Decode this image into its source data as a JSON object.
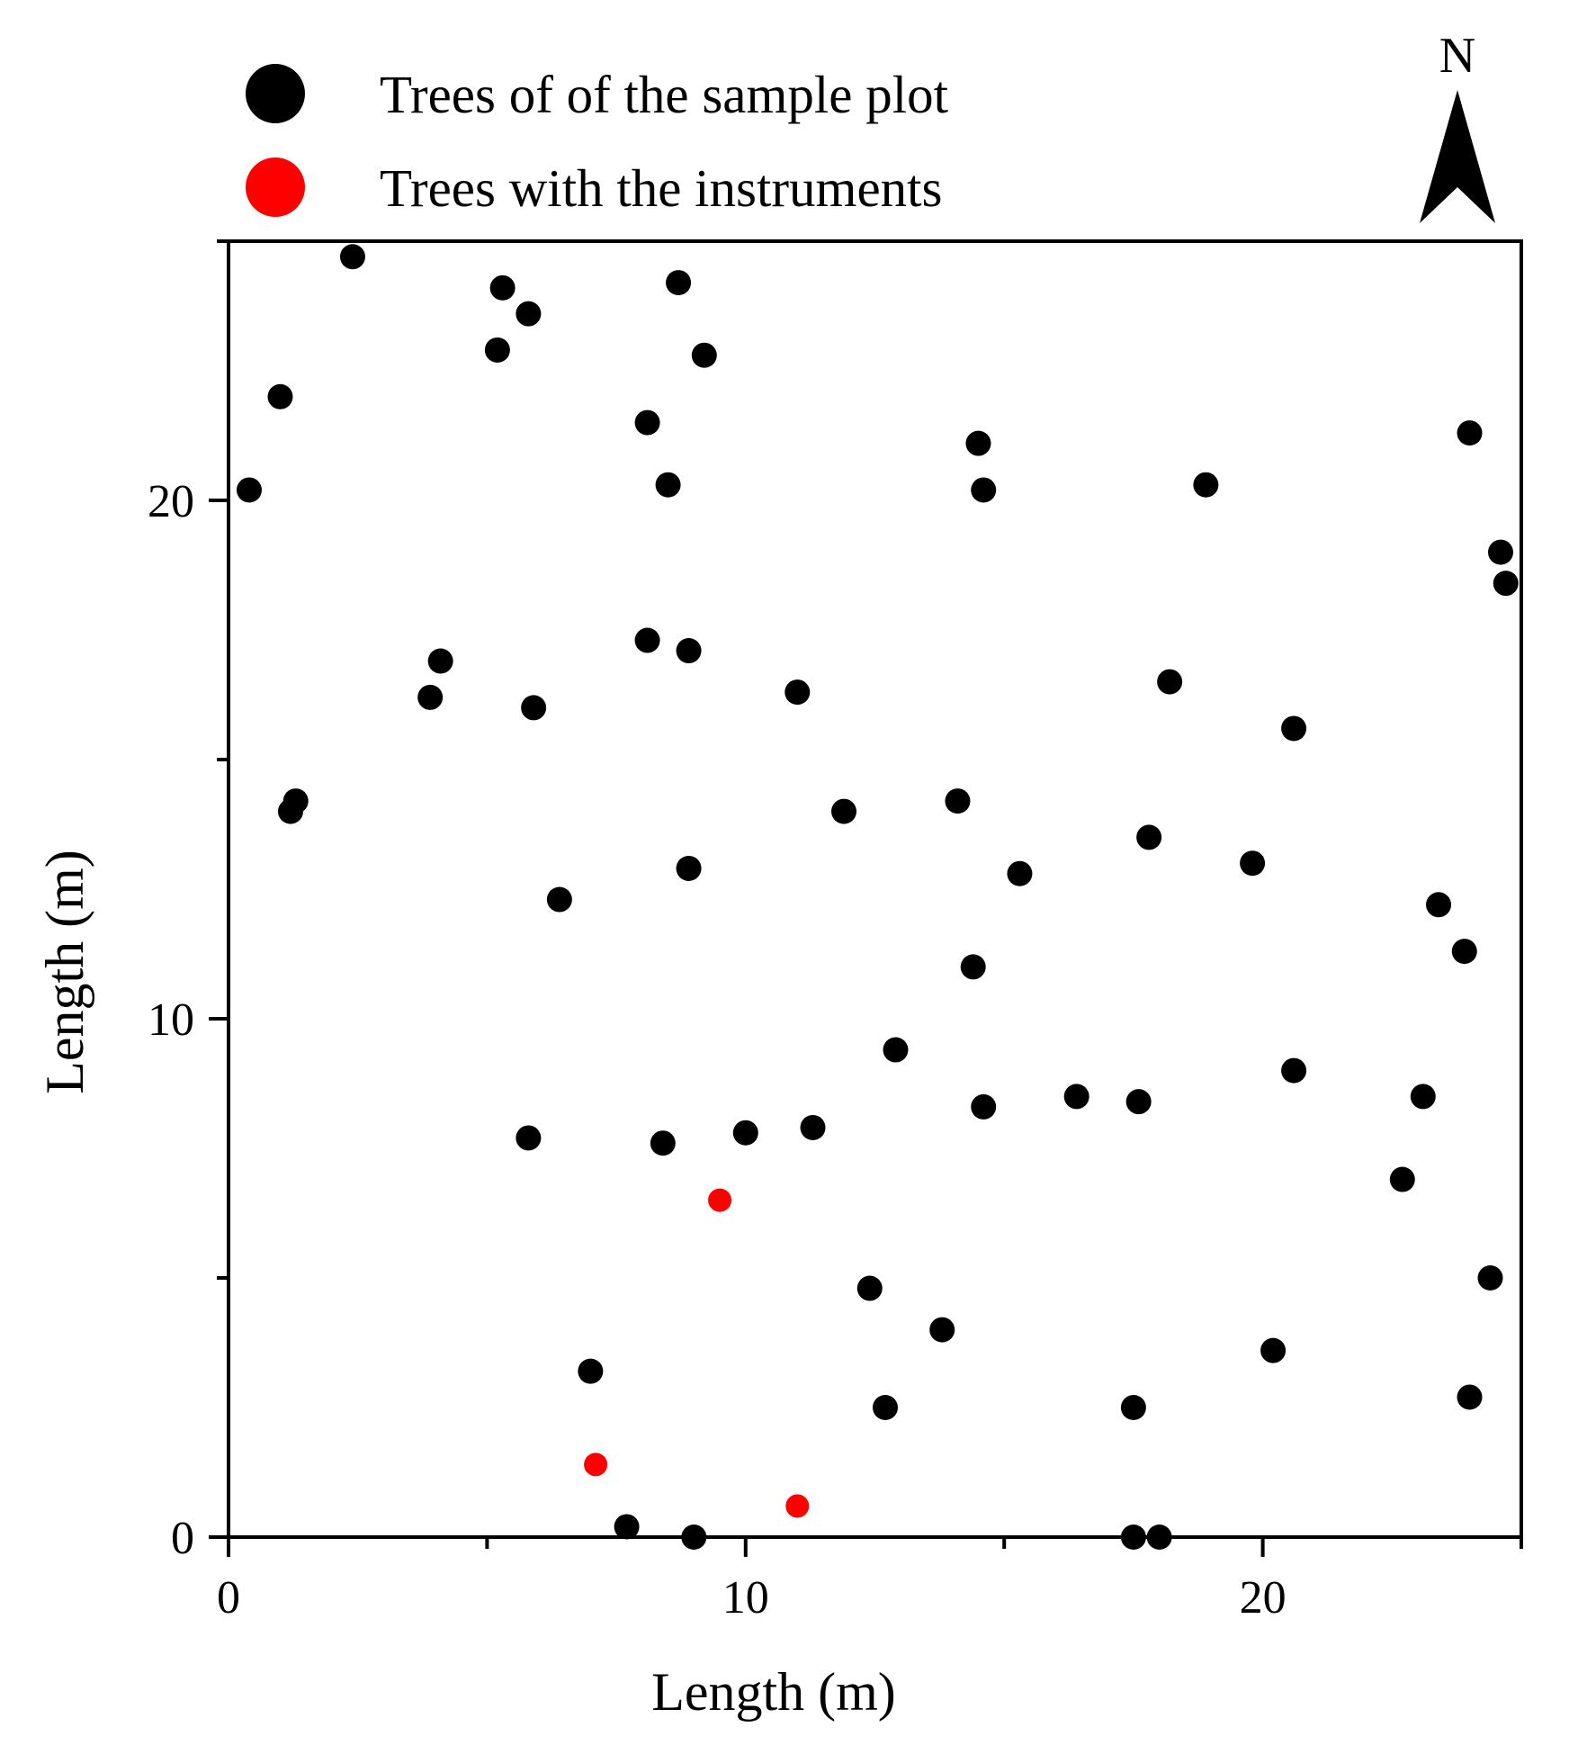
{
  "chart_data": {
    "type": "scatter",
    "title": "",
    "xlabel": "Length (m)",
    "ylabel": "Length (m)",
    "xlim": [
      0,
      25
    ],
    "ylim": [
      0,
      25
    ],
    "x_ticks": [
      0,
      10,
      20
    ],
    "y_ticks": [
      0,
      10,
      20
    ],
    "x_minor_ticks": [
      5,
      15,
      25
    ],
    "y_minor_ticks": [
      5,
      15,
      25
    ],
    "grid": false,
    "legend_position": "top-left",
    "north_label": "N",
    "series": [
      {
        "name": "Trees of of the sample plot",
        "color": "#000000",
        "points": [
          [
            2.4,
            24.7
          ],
          [
            5.3,
            24.1
          ],
          [
            8.7,
            24.2
          ],
          [
            5.8,
            23.6
          ],
          [
            5.2,
            22.9
          ],
          [
            9.2,
            22.8
          ],
          [
            1.0,
            22.0
          ],
          [
            8.1,
            21.5
          ],
          [
            14.5,
            21.1
          ],
          [
            24.0,
            21.3
          ],
          [
            0.4,
            20.2
          ],
          [
            8.5,
            20.3
          ],
          [
            14.6,
            20.2
          ],
          [
            18.9,
            20.3
          ],
          [
            24.6,
            19.0
          ],
          [
            24.7,
            18.4
          ],
          [
            8.1,
            17.3
          ],
          [
            8.9,
            17.1
          ],
          [
            4.1,
            16.9
          ],
          [
            3.9,
            16.2
          ],
          [
            5.9,
            16.0
          ],
          [
            11.0,
            16.3
          ],
          [
            18.2,
            16.5
          ],
          [
            20.6,
            15.6
          ],
          [
            1.3,
            14.2
          ],
          [
            1.2,
            14.0
          ],
          [
            11.9,
            14.0
          ],
          [
            14.1,
            14.2
          ],
          [
            17.8,
            13.5
          ],
          [
            19.8,
            13.0
          ],
          [
            8.9,
            12.9
          ],
          [
            15.3,
            12.8
          ],
          [
            6.4,
            12.3
          ],
          [
            23.4,
            12.2
          ],
          [
            23.9,
            11.3
          ],
          [
            14.4,
            11.0
          ],
          [
            12.9,
            9.4
          ],
          [
            20.6,
            9.0
          ],
          [
            16.4,
            8.5
          ],
          [
            17.6,
            8.4
          ],
          [
            14.6,
            8.3
          ],
          [
            23.1,
            8.5
          ],
          [
            5.8,
            7.7
          ],
          [
            8.4,
            7.6
          ],
          [
            10.0,
            7.8
          ],
          [
            11.3,
            7.9
          ],
          [
            22.7,
            6.9
          ],
          [
            24.4,
            5.0
          ],
          [
            12.4,
            4.8
          ],
          [
            13.8,
            4.0
          ],
          [
            20.2,
            3.6
          ],
          [
            7.0,
            3.2
          ],
          [
            12.7,
            2.5
          ],
          [
            17.5,
            2.5
          ],
          [
            24.0,
            2.7
          ],
          [
            7.7,
            0.2
          ],
          [
            9.0,
            0.0
          ],
          [
            17.5,
            0.0
          ],
          [
            18.0,
            0.0
          ]
        ]
      },
      {
        "name": "Trees with the instruments",
        "color": "#ff0000",
        "points": [
          [
            9.5,
            6.5
          ],
          [
            7.1,
            1.4
          ],
          [
            11.0,
            0.6
          ]
        ]
      }
    ]
  }
}
